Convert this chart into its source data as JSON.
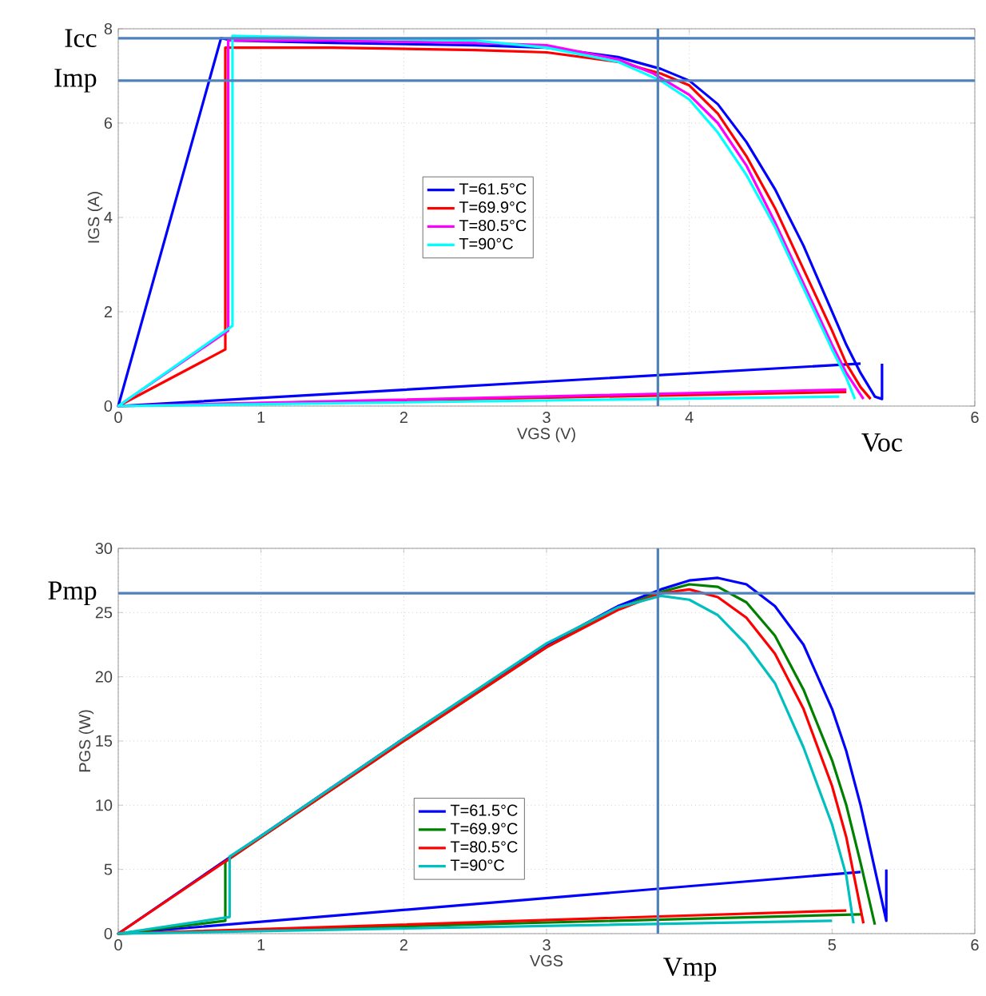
{
  "chart_data": [
    {
      "type": "line",
      "xlabel": "VGS (V)",
      "ylabel": "IGS (A)",
      "xlim": [
        0,
        6
      ],
      "ylim": [
        0,
        8
      ],
      "xticks": [
        0,
        1,
        2,
        3,
        4,
        6
      ],
      "yticks": [
        0,
        2,
        4,
        6,
        8
      ],
      "grid": true,
      "legend": "center",
      "series": [
        {
          "name": "T=61.5°C",
          "color": "#0000ff",
          "x": [
            5.2,
            0,
            0.72,
            0.8,
            1.5,
            2.5,
            3.0,
            3.5,
            3.8,
            4.0,
            4.2,
            4.4,
            4.6,
            4.8,
            5.0,
            5.1,
            5.2,
            5.3,
            5.35,
            5.35
          ],
          "values": [
            0.9,
            0,
            7.8,
            7.75,
            7.7,
            7.65,
            7.6,
            7.4,
            7.15,
            6.9,
            6.4,
            5.6,
            4.6,
            3.4,
            2.0,
            1.3,
            0.7,
            0.2,
            0.15,
            0.9
          ]
        },
        {
          "name": "T=69.9°C",
          "color": "#ff0000",
          "x": [
            5.1,
            0,
            0.75,
            0.75,
            1.5,
            2.5,
            3.0,
            3.5,
            3.8,
            4.0,
            4.2,
            4.4,
            4.6,
            4.8,
            5.0,
            5.1,
            5.2,
            5.27
          ],
          "values": [
            0.3,
            0,
            1.2,
            7.6,
            7.6,
            7.55,
            7.5,
            7.3,
            7.05,
            6.8,
            6.2,
            5.3,
            4.2,
            2.9,
            1.6,
            0.9,
            0.4,
            0.15
          ]
        },
        {
          "name": "T=80.5°C",
          "color": "#ff00ff",
          "x": [
            5.1,
            0,
            0.77,
            0.77,
            1.5,
            2.5,
            3.0,
            3.5,
            3.75,
            4.0,
            4.2,
            4.4,
            4.6,
            4.8,
            5.0,
            5.1,
            5.22
          ],
          "values": [
            0.35,
            0,
            1.6,
            7.75,
            7.75,
            7.7,
            7.65,
            7.35,
            7.05,
            6.6,
            6.0,
            5.1,
            3.9,
            2.6,
            1.3,
            0.7,
            0.15
          ]
        },
        {
          "name": "T=90°C",
          "color": "#00ffff",
          "x": [
            5.05,
            0,
            0.8,
            0.8,
            1.5,
            2.5,
            3.0,
            3.5,
            3.8,
            4.0,
            4.2,
            4.4,
            4.6,
            4.8,
            5.0,
            5.1,
            5.16
          ],
          "values": [
            0.2,
            0,
            1.7,
            7.85,
            7.8,
            7.75,
            7.6,
            7.3,
            6.9,
            6.5,
            5.8,
            4.9,
            3.8,
            2.5,
            1.2,
            0.6,
            0.15
          ]
        }
      ],
      "ref_lines": [
        {
          "axis": "y",
          "value": 7.8,
          "label": "Icc",
          "color": "#4f81bd"
        },
        {
          "axis": "y",
          "value": 6.9,
          "label": "Imp",
          "color": "#4f81bd"
        },
        {
          "axis": "x",
          "value": 3.78,
          "color": "#4f81bd"
        }
      ],
      "annotations": [
        {
          "text": "Voc",
          "x": 5.35,
          "y": 0
        }
      ]
    },
    {
      "type": "line",
      "xlabel": "VGS",
      "ylabel": "PGS (W)",
      "xlim": [
        0,
        6
      ],
      "ylim": [
        0,
        30
      ],
      "xticks": [
        0,
        1,
        2,
        3,
        5,
        6
      ],
      "yticks": [
        0,
        5,
        10,
        15,
        20,
        25,
        30
      ],
      "grid": true,
      "legend": "bottom",
      "series": [
        {
          "name": "T=61.5°C",
          "color": "#0000ff",
          "x": [
            5.2,
            0,
            1.0,
            2.0,
            3.0,
            3.5,
            3.8,
            4.0,
            4.2,
            4.4,
            4.6,
            4.8,
            5.0,
            5.1,
            5.2,
            5.3,
            5.38,
            5.38
          ],
          "values": [
            4.8,
            0,
            7.6,
            15.2,
            22.5,
            25.5,
            26.8,
            27.5,
            27.7,
            27.2,
            25.5,
            22.5,
            17.5,
            14.2,
            10.0,
            5.0,
            1.0,
            5.0
          ]
        },
        {
          "name": "T=69.9°C",
          "color": "#008000",
          "x": [
            5.2,
            0,
            0.75,
            0.75,
            1.0,
            2.0,
            3.0,
            3.5,
            3.8,
            4.0,
            4.2,
            4.4,
            4.6,
            4.8,
            5.0,
            5.1,
            5.2,
            5.3
          ],
          "values": [
            1.5,
            0,
            1.0,
            5.6,
            7.5,
            15.0,
            22.3,
            25.3,
            26.6,
            27.2,
            27.0,
            25.8,
            23.2,
            19.0,
            13.5,
            10.0,
            5.5,
            0.7
          ]
        },
        {
          "name": "T=80.5°C",
          "color": "#ff0000",
          "x": [
            5.1,
            0,
            1.0,
            2.0,
            3.0,
            3.5,
            3.8,
            4.0,
            4.2,
            4.4,
            4.6,
            4.8,
            5.0,
            5.1,
            5.22
          ],
          "values": [
            1.8,
            0,
            7.5,
            15.0,
            22.3,
            25.2,
            26.5,
            26.8,
            26.2,
            24.6,
            21.8,
            17.5,
            11.5,
            7.5,
            0.8
          ]
        },
        {
          "name": "T=90°C",
          "color": "#00bfbf",
          "x": [
            5.0,
            0,
            0.78,
            0.78,
            1.0,
            2.0,
            3.0,
            3.5,
            3.8,
            4.0,
            4.2,
            4.4,
            4.6,
            4.8,
            5.0,
            5.1,
            5.15
          ],
          "values": [
            1.0,
            0,
            1.3,
            6.0,
            7.6,
            15.2,
            22.6,
            25.4,
            26.3,
            26.0,
            24.8,
            22.5,
            19.5,
            14.5,
            8.5,
            4.5,
            0.8
          ]
        }
      ],
      "ref_lines": [
        {
          "axis": "y",
          "value": 26.5,
          "label": "Pmp",
          "color": "#4f81bd"
        },
        {
          "axis": "x",
          "value": 3.78,
          "label": "Vmp",
          "color": "#4f81bd"
        }
      ]
    }
  ]
}
